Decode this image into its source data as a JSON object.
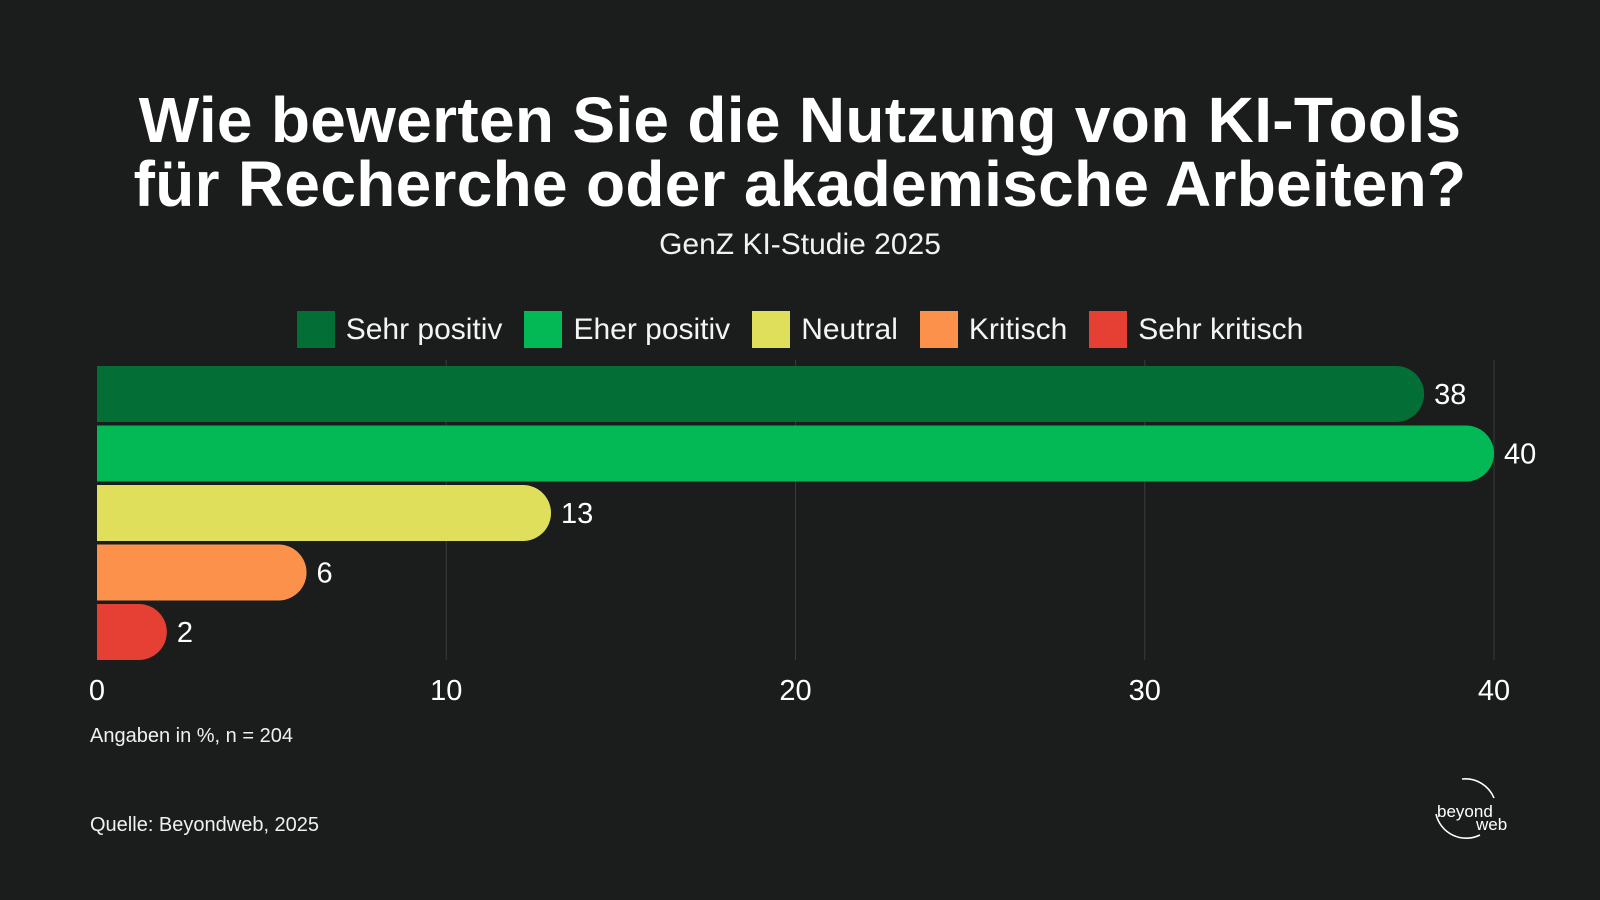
{
  "header": {
    "title_line1": "Wie bewerten Sie die Nutzung von KI-Tools",
    "title_line2": "für Recherche oder akademische Arbeiten?",
    "subtitle": "GenZ KI-Studie 2025"
  },
  "footer": {
    "note": "Angaben in %, n = 204",
    "source": "Quelle: Beyondweb, 2025"
  },
  "logo": {
    "line1": "beyond",
    "line2": "web"
  },
  "chart_data": {
    "type": "bar",
    "orientation": "horizontal",
    "title": "Wie bewerten Sie die Nutzung von KI-Tools für Recherche oder akademische Arbeiten?",
    "subtitle": "GenZ KI-Studie 2025",
    "xlim": [
      0,
      40
    ],
    "xticks": [
      "0",
      "10",
      "20",
      "30",
      "40"
    ],
    "grid": true,
    "legend_position": "top",
    "series": [
      {
        "name": "Sehr positiv",
        "value": 38,
        "color": "#036e36"
      },
      {
        "name": "Eher positiv",
        "value": 40,
        "color": "#02b955"
      },
      {
        "name": "Neutral",
        "value": 13,
        "color": "#e0df5b"
      },
      {
        "name": "Kritisch",
        "value": 6,
        "color": "#fc914b"
      },
      {
        "name": "Sehr kritisch",
        "value": 2,
        "color": "#e64034"
      }
    ]
  }
}
